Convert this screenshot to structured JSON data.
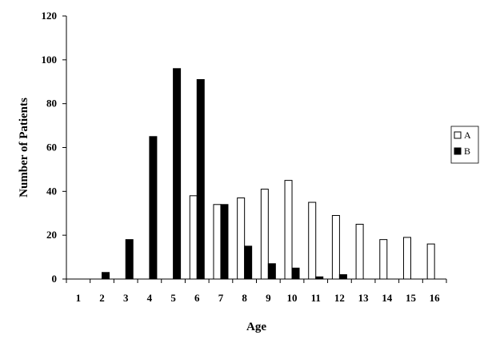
{
  "chart_data": {
    "type": "bar",
    "title": "",
    "xlabel": "Age",
    "ylabel": "Number of Patients",
    "ylim": [
      0,
      120
    ],
    "yticks": [
      0,
      20,
      40,
      60,
      80,
      100,
      120
    ],
    "categories": [
      "1",
      "2",
      "3",
      "4",
      "5",
      "6",
      "7",
      "8",
      "9",
      "10",
      "11",
      "12",
      "13",
      "14",
      "15",
      "16"
    ],
    "series": [
      {
        "name": "A",
        "color": "#ffffff",
        "values": [
          0,
          0,
          0,
          0,
          0,
          38,
          34,
          37,
          41,
          45,
          35,
          29,
          25,
          18,
          19,
          16
        ]
      },
      {
        "name": "B",
        "color": "#000000",
        "values": [
          0,
          3,
          18,
          65,
          96,
          91,
          34,
          15,
          7,
          5,
          1,
          2,
          0,
          0,
          0,
          0
        ]
      }
    ],
    "grid": false,
    "legend_position": "right"
  }
}
